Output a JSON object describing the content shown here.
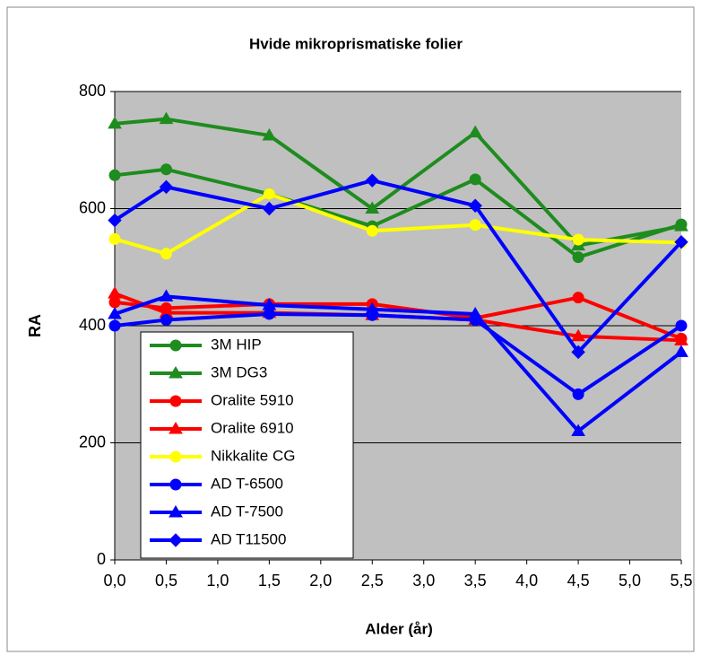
{
  "chart_data": {
    "type": "line",
    "title": "Hvide mikroprismatiske folier",
    "x_label": "Alder (år)",
    "y_label": "RA",
    "x": [
      0,
      0.5,
      1.5,
      2.5,
      3.5,
      4.5,
      5.5
    ],
    "xlim": [
      0,
      5.5
    ],
    "xticks": [
      {
        "value": 0,
        "label": "0,0"
      },
      {
        "value": 0.5,
        "label": "0,5"
      },
      {
        "value": 1,
        "label": "1,0"
      },
      {
        "value": 1.5,
        "label": "1,5"
      },
      {
        "value": 2,
        "label": "2,0"
      },
      {
        "value": 2.5,
        "label": "2,5"
      },
      {
        "value": 3,
        "label": "3,0"
      },
      {
        "value": 3.5,
        "label": "3,5"
      },
      {
        "value": 4,
        "label": "4,0"
      },
      {
        "value": 4.5,
        "label": "4,5"
      },
      {
        "value": 5,
        "label": "5,0"
      },
      {
        "value": 5.5,
        "label": "5,5"
      }
    ],
    "ylim": [
      0,
      800
    ],
    "yticks": [
      0,
      200,
      400,
      600,
      800
    ],
    "grid": true,
    "legend": "lower left",
    "series": [
      {
        "name": "3M HIP",
        "color": "#1e8c1e",
        "marker": "circle",
        "values": [
          657,
          667,
          625,
          570,
          650,
          517,
          573
        ]
      },
      {
        "name": "3M DG3",
        "color": "#1e8c1e",
        "marker": "triangle",
        "values": [
          745,
          753,
          725,
          600,
          730,
          537,
          570
        ]
      },
      {
        "name": "Oralite 5910",
        "color": "#ff0000",
        "marker": "circle",
        "values": [
          440,
          430,
          437,
          437,
          413,
          448,
          378
        ]
      },
      {
        "name": "Oralite 6910",
        "color": "#ff0000",
        "marker": "triangle",
        "values": [
          455,
          422,
          422,
          418,
          410,
          382,
          375
        ]
      },
      {
        "name": "Nikkalite CG",
        "color": "#ffff00",
        "marker": "circle",
        "values": [
          548,
          523,
          625,
          562,
          572,
          547,
          542
        ]
      },
      {
        "name": "AD T-6500",
        "color": "#0000ff",
        "marker": "circle",
        "values": [
          400,
          410,
          420,
          418,
          410,
          283,
          400
        ]
      },
      {
        "name": "AD T-7500",
        "color": "#0000ff",
        "marker": "triangle",
        "values": [
          420,
          450,
          435,
          428,
          420,
          220,
          355
        ]
      },
      {
        "name": "AD T11500",
        "color": "#0000ff",
        "marker": "diamond",
        "values": [
          580,
          637,
          600,
          648,
          605,
          355,
          543
        ]
      }
    ]
  }
}
